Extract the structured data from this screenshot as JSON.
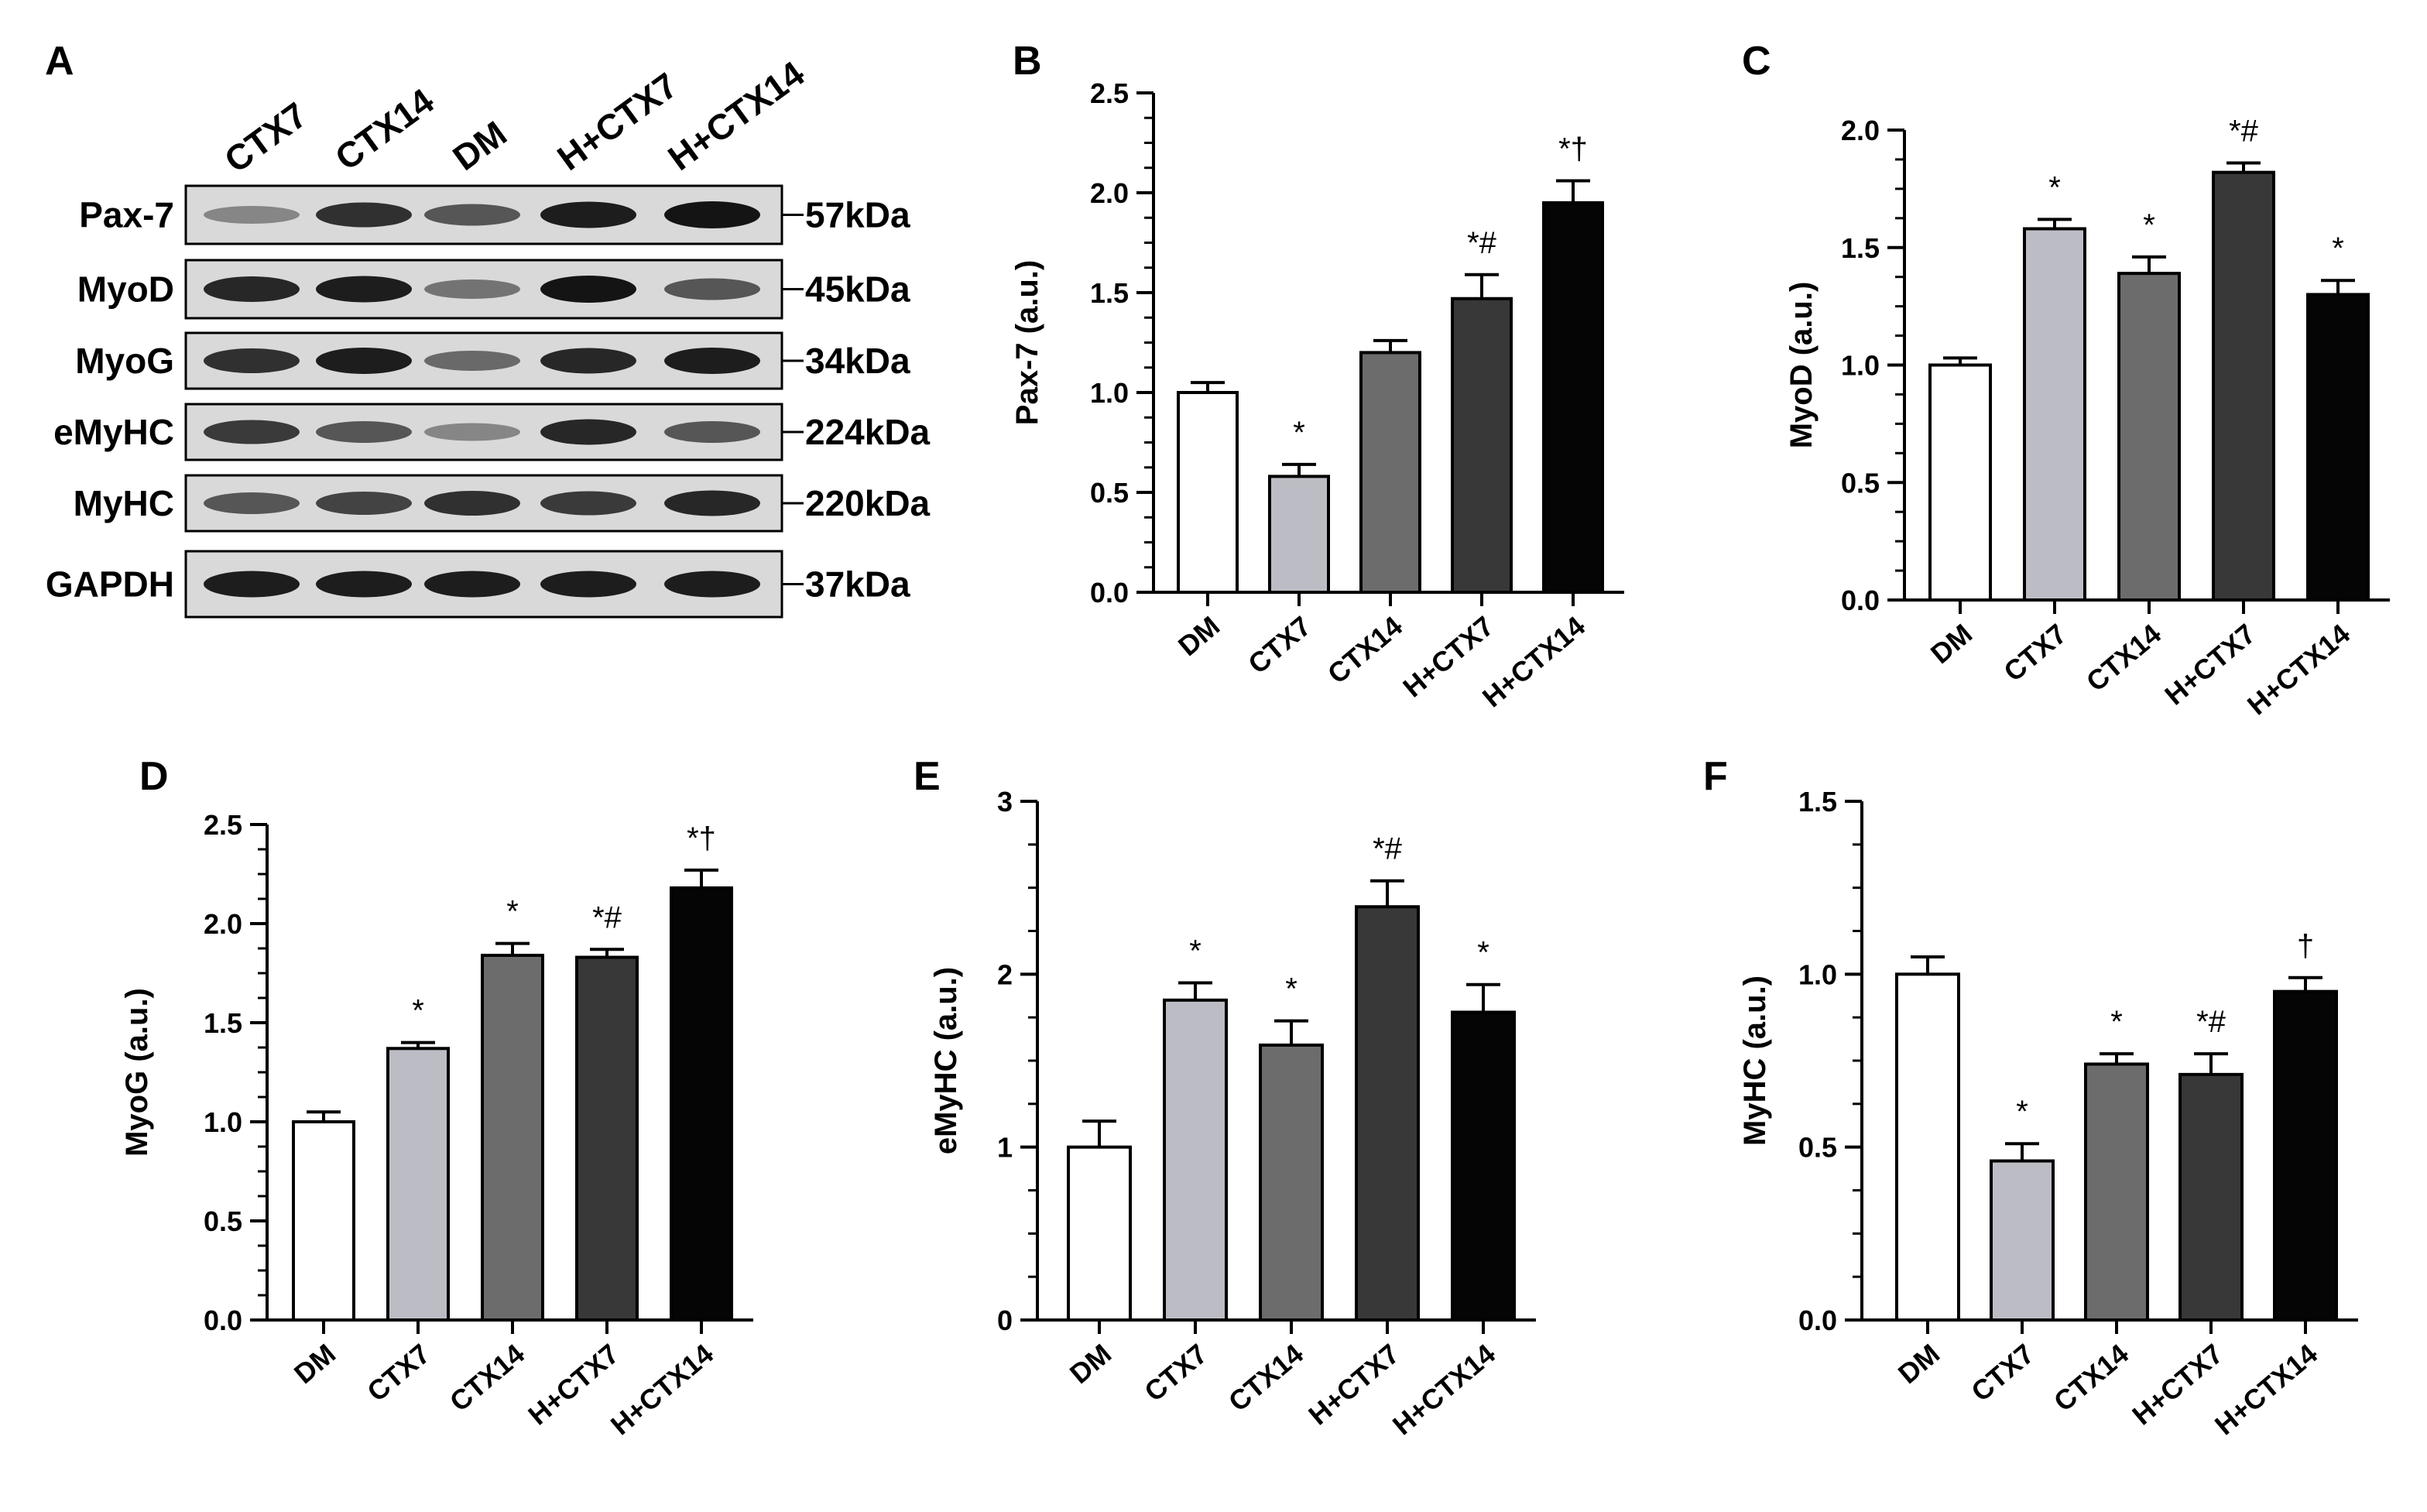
{
  "panel_letters": {
    "a": "A",
    "b": "B",
    "c": "C",
    "d": "D",
    "e": "E",
    "f": "F"
  },
  "western_blot": {
    "lanes": [
      "CTX7",
      "CTX14",
      "DM",
      "H+CTX7",
      "H+CTX14"
    ],
    "rows": [
      {
        "protein": "Pax-7",
        "kda": "57kDa",
        "intensity": [
          0.35,
          0.8,
          0.6,
          0.9,
          0.95
        ]
      },
      {
        "protein": "MyoD",
        "kda": "45kDa",
        "intensity": [
          0.85,
          0.9,
          0.45,
          0.95,
          0.6
        ]
      },
      {
        "protein": "MyoG",
        "kda": "34kDa",
        "intensity": [
          0.8,
          0.9,
          0.5,
          0.85,
          0.9
        ]
      },
      {
        "protein": "eMyHC",
        "kda": "224kDa",
        "intensity": [
          0.75,
          0.6,
          0.35,
          0.85,
          0.6
        ]
      },
      {
        "protein": "MyHC",
        "kda": "220kDa",
        "intensity": [
          0.6,
          0.7,
          0.8,
          0.75,
          0.85
        ]
      },
      {
        "protein": "GAPDH",
        "kda": "37kDa",
        "intensity": [
          0.9,
          0.9,
          0.9,
          0.9,
          0.9
        ]
      }
    ]
  },
  "bar_colors": [
    "#ffffff",
    "#bcbdc4",
    "#6c6c6c",
    "#383838",
    "#050505"
  ],
  "chart_data": [
    {
      "type": "bar",
      "panel": "B",
      "categories": [
        "DM",
        "CTX7",
        "CTX14",
        "H+CTX7",
        "H+CTX14"
      ],
      "values": [
        1.0,
        0.58,
        1.2,
        1.47,
        1.95
      ],
      "errors": [
        0.05,
        0.06,
        0.06,
        0.12,
        0.11
      ],
      "annotations": [
        "",
        "*",
        "",
        "*#",
        "*†"
      ],
      "ylabel": "Pax-7 (a.u.)",
      "ylim": [
        0,
        2.5
      ],
      "yticks": [
        "0.0",
        "0.5",
        "1.0",
        "1.5",
        "2.0",
        "2.5"
      ]
    },
    {
      "type": "bar",
      "panel": "C",
      "categories": [
        "DM",
        "CTX7",
        "CTX14",
        "H+CTX7",
        "H+CTX14"
      ],
      "values": [
        1.0,
        1.58,
        1.39,
        1.82,
        1.3
      ],
      "errors": [
        0.03,
        0.04,
        0.07,
        0.04,
        0.06
      ],
      "annotations": [
        "",
        "*",
        "*",
        "*#",
        "*"
      ],
      "ylabel": "MyoD (a.u.)",
      "ylim": [
        0,
        2.0
      ],
      "yticks": [
        "0.0",
        "0.5",
        "1.0",
        "1.5",
        "2.0"
      ]
    },
    {
      "type": "bar",
      "panel": "D",
      "categories": [
        "DM",
        "CTX7",
        "CTX14",
        "H+CTX7",
        "H+CTX14"
      ],
      "values": [
        1.0,
        1.37,
        1.84,
        1.83,
        2.18
      ],
      "errors": [
        0.05,
        0.03,
        0.06,
        0.04,
        0.09
      ],
      "annotations": [
        "",
        "*",
        "*",
        "*#",
        "*†"
      ],
      "ylabel": "MyoG (a.u.)",
      "ylim": [
        0,
        2.5
      ],
      "yticks": [
        "0.0",
        "0.5",
        "1.0",
        "1.5",
        "2.0",
        "2.5"
      ]
    },
    {
      "type": "bar",
      "panel": "E",
      "categories": [
        "DM",
        "CTX7",
        "CTX14",
        "H+CTX7",
        "H+CTX14"
      ],
      "values": [
        1.0,
        1.85,
        1.59,
        2.39,
        1.78
      ],
      "errors": [
        0.15,
        0.1,
        0.14,
        0.15,
        0.16
      ],
      "annotations": [
        "",
        "*",
        "*",
        "*#",
        "*"
      ],
      "ylabel": "eMyHC (a.u.)",
      "ylim": [
        0,
        3
      ],
      "yticks": [
        "0",
        "1",
        "2",
        "3"
      ]
    },
    {
      "type": "bar",
      "panel": "F",
      "categories": [
        "DM",
        "CTX7",
        "CTX14",
        "H+CTX7",
        "H+CTX14"
      ],
      "values": [
        1.0,
        0.46,
        0.74,
        0.71,
        0.95
      ],
      "errors": [
        0.05,
        0.05,
        0.03,
        0.06,
        0.04
      ],
      "annotations": [
        "",
        "*",
        "*",
        "*#",
        "†"
      ],
      "ylabel": "MyHC (a.u.)",
      "ylim": [
        0,
        1.5
      ],
      "yticks": [
        "0.0",
        "0.5",
        "1.0",
        "1.5"
      ]
    }
  ]
}
